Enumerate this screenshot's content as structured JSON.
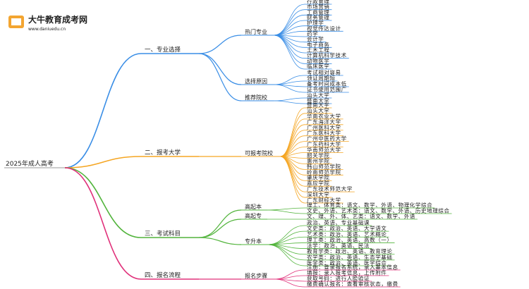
{
  "logo": {
    "title": "大牛教育成考网",
    "url": "www.daniuedu.cn"
  },
  "root": "2025年成人高考",
  "branches": [
    {
      "label": "一、专业选择",
      "groups": [
        {
          "label": "热门专业",
          "items": [
            "行政管理",
            "市场营销",
            "工商管理",
            "财务管理",
            "护理学",
            "视觉传达设计",
            "药学",
            "会计学",
            "电子商务",
            "土木工程",
            "计算机科学技术",
            "动物医学",
            "临床医学"
          ]
        },
        {
          "label": "选择原因",
          "items": [
            "考试相对容易",
            "领证周期短",
            "备考时间成本低",
            "证书使用范围广"
          ]
        },
        {
          "label": "推荐院校",
          "items": [
            "汕头大学",
            "暨南大学"
          ]
        }
      ]
    },
    {
      "label": "二、报考大学",
      "groups": [
        {
          "label": "可报考院校",
          "items": [
            "暨南大学",
            "汕头大学",
            "华南农业大学",
            "广东海洋大学",
            "广州医科大学",
            "广东医科大学",
            "广州中医药大学",
            "广东药科大学",
            "华南师范大学",
            "韶关学院",
            "惠州学院",
            "韩山师范学院",
            "岭南师范学院",
            "肇庆学院",
            "嘉应学院",
            "广东技术师范大学",
            "深圳大学",
            "广东财经大学"
          ]
        }
      ]
    },
    {
      "label": "三、考试科目",
      "groups": [
        {
          "label": "高起本",
          "items": [
            "理工、体育类：语文、数学、外语、物理化学综合",
            "文史、外语、艺术类：语文、数学、外语、历史地理综合"
          ]
        },
        {
          "label": "高起专",
          "items": [
            "文、理、外、体、艺类：语文、数学、外语"
          ]
        },
        {
          "label": "专升本",
          "items": [
            "政治、英语、专业基础课",
            "文史类：政治、英语、大学语文",
            "艺术类：政治、英语、艺术概论",
            "理工类：政治、英语、高数（一）",
            "法学：政治、英语、民法",
            "教育学类：政治、英语、教育理论",
            "农学类：政治、英语、生态学基础",
            "医学类：政治、英语、医学综合"
          ]
        }
      ]
    },
    {
      "label": "四、报名流程",
      "groups": [
        {
          "label": "报名步骤",
          "items": [
            "注册：登录报名系统，录入基本信息",
            "填报：录入报考信息，上传附件",
            "获取号码：进行人脸验证",
            "缴费确认报名：查看审核状态，缴费"
          ]
        }
      ]
    }
  ]
}
